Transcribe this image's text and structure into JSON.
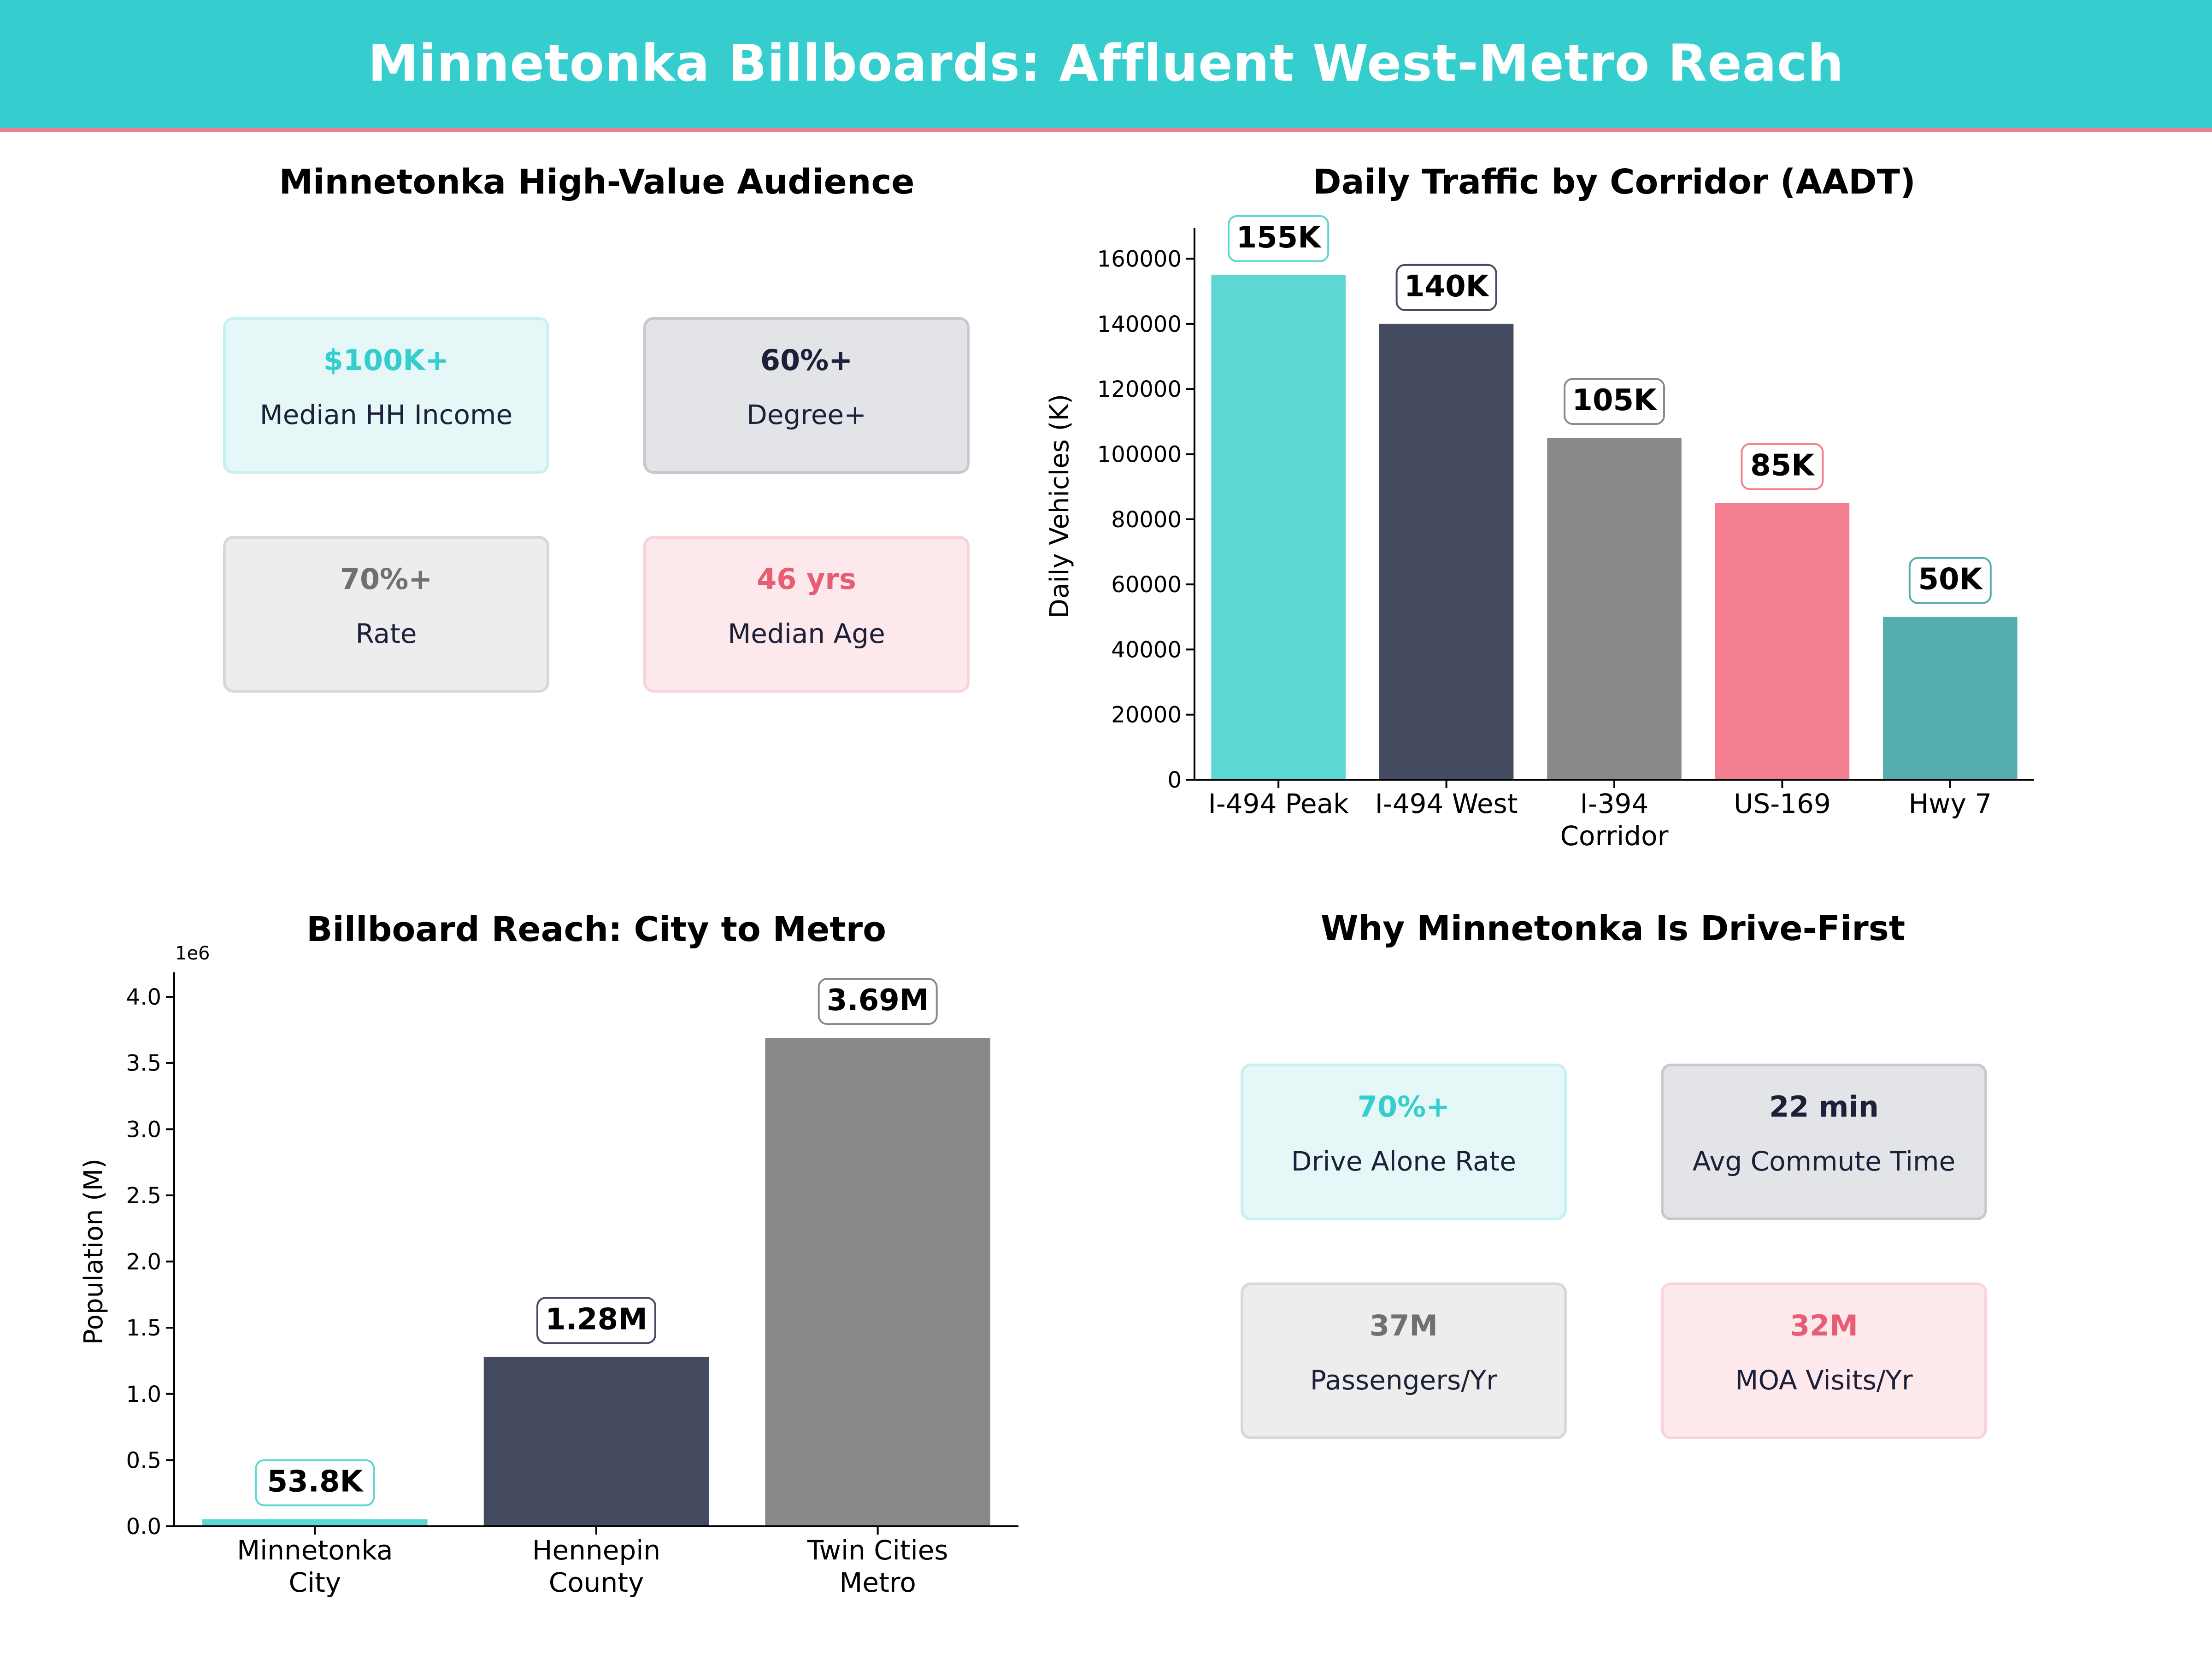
{
  "header": {
    "title": "Minnetonka Billboards: Affluent West-Metro Reach"
  },
  "colors": {
    "header_bg": "#36cdce",
    "header_line": "#f08090",
    "teal": "#5dd7d4",
    "navy": "#444a60",
    "gray": "#898989",
    "pink": "#f47f91",
    "dark_teal": "#56adad"
  },
  "audience": {
    "title": "Minnetonka High-Value Audience",
    "cards": [
      {
        "value": "$100K+",
        "label": "Median HH Income",
        "style": "teal"
      },
      {
        "value": "60%+",
        "label": "Degree+",
        "style": "navy"
      },
      {
        "value": "70%+",
        "label": "Rate",
        "style": "gray"
      },
      {
        "value": "46 yrs",
        "label": "Median Age",
        "style": "pink"
      }
    ]
  },
  "drive": {
    "title": "Why Minnetonka Is Drive-First",
    "cards": [
      {
        "value": "70%+",
        "label": "Drive Alone Rate",
        "style": "teal"
      },
      {
        "value": "22 min",
        "label": "Avg Commute Time",
        "style": "navy"
      },
      {
        "value": "37M",
        "label": "Passengers/Yr",
        "style": "gray"
      },
      {
        "value": "32M",
        "label": "MOA Visits/Yr",
        "style": "pink"
      }
    ]
  },
  "chart_data": [
    {
      "type": "bar",
      "title": "Daily Traffic by Corridor (AADT)",
      "xlabel": "",
      "ylabel": "Daily Vehicles (K)",
      "categories": [
        [
          "I-494 Peak"
        ],
        [
          "I-494 West"
        ],
        [
          "I-394",
          "Corridor"
        ],
        [
          "US-169"
        ],
        [
          "Hwy 7"
        ]
      ],
      "values": [
        155000,
        140000,
        105000,
        85000,
        50000
      ],
      "data_labels": [
        "155K",
        "140K",
        "105K",
        "85K",
        "50K"
      ],
      "bar_colors": [
        "#5dd7d4",
        "#444a60",
        "#898989",
        "#f47f91",
        "#56adad"
      ],
      "label_border_colors": [
        "#5dd7d4",
        "#444a60",
        "#898989",
        "#f47f91",
        "#56adad"
      ],
      "yticks": [
        "0",
        "20000",
        "40000",
        "60000",
        "80000",
        "100000",
        "120000",
        "140000",
        "160000"
      ],
      "ylim": [
        0,
        168000
      ],
      "grid": false
    },
    {
      "type": "bar",
      "title": "Billboard Reach: City to Metro",
      "xlabel": "",
      "ylabel": "Population (M)",
      "axis_multiplier": "1e6",
      "categories": [
        [
          "Minnetonka",
          "City"
        ],
        [
          "Hennepin",
          "County"
        ],
        [
          "Twin Cities",
          "Metro"
        ]
      ],
      "values": [
        53800,
        1280000,
        3690000
      ],
      "data_labels": [
        "53.8K",
        "1.28M",
        "3.69M"
      ],
      "bar_colors": [
        "#5dd7d4",
        "#444a60",
        "#898989"
      ],
      "label_border_colors": [
        "#5dd7d4",
        "#444a60",
        "#898989"
      ],
      "yticks": [
        "0.0",
        "0.5",
        "1.0",
        "1.5",
        "2.0",
        "2.5",
        "3.0",
        "3.5",
        "4.0"
      ],
      "ylim": [
        0,
        4150000
      ],
      "grid": false
    }
  ]
}
